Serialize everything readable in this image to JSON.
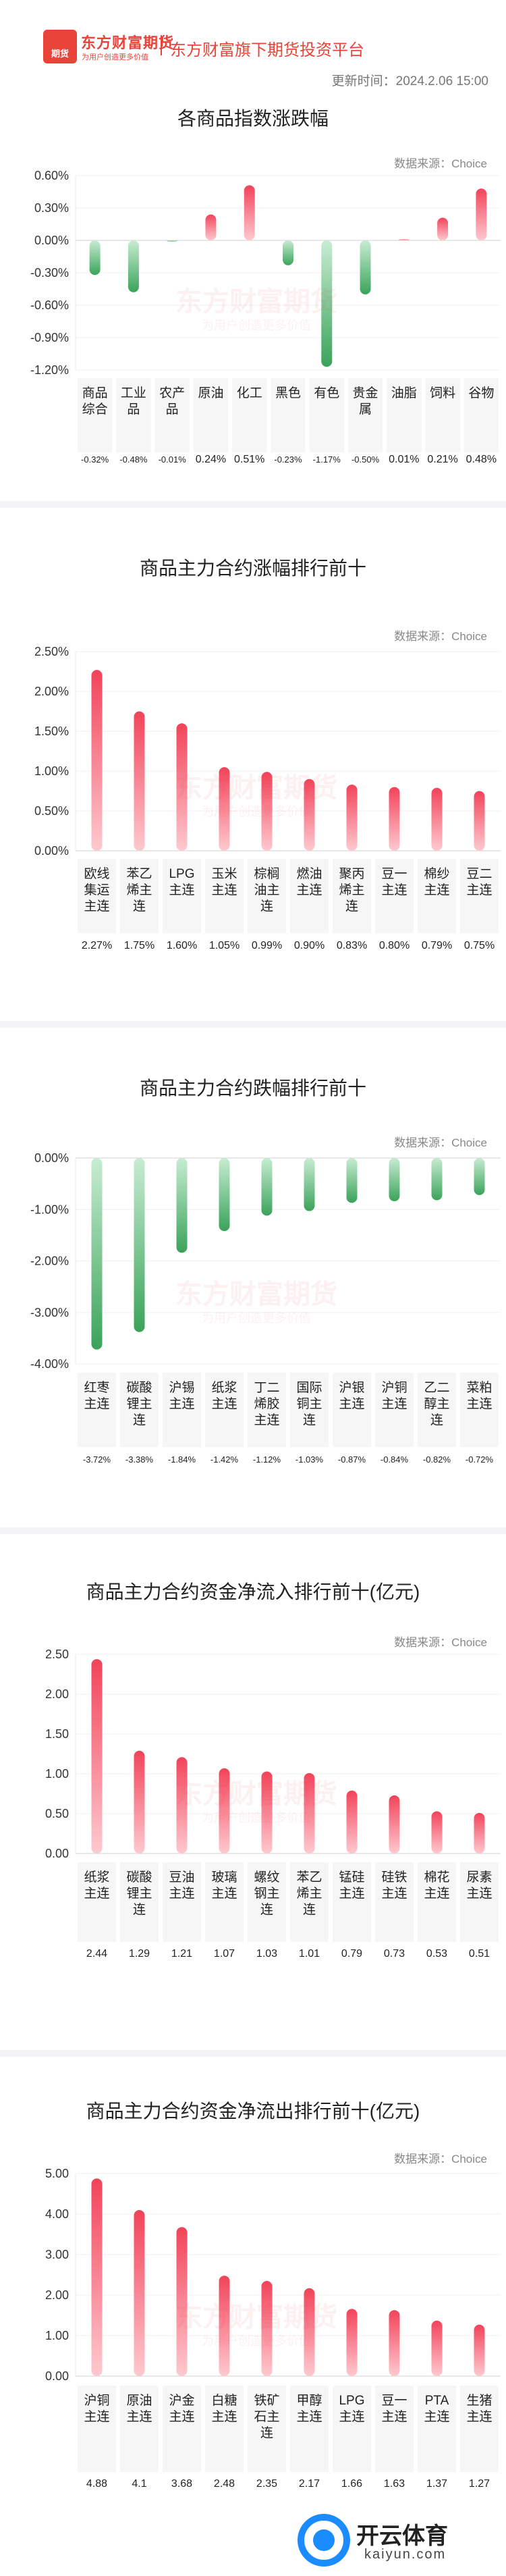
{
  "header": {
    "logo_badge": "期货",
    "logo_name": "东方财富期货",
    "logo_slogan": "为用户创造更多价值",
    "title": "东方财富旗下期货投资平台",
    "update_time": "更新时间：2024.2.06 15:00"
  },
  "watermark": {
    "name": "东方财富期货",
    "slogan": "为用户创造更多价值"
  },
  "source_label": "数据来源：Choice",
  "colors": {
    "up": "#f2435a",
    "down": "#3aa35a",
    "brand": "#e9433a"
  },
  "corner_logo": {
    "name": "开云体育",
    "url": "kaiyun.com"
  },
  "chart_data": [
    {
      "id": "chart1",
      "type": "bar",
      "title": "各商品指数涨跌幅",
      "ylim": [
        -1.2,
        0.6
      ],
      "yticks": [
        "0.60%",
        "0.30%",
        "0.00%",
        "-0.30%",
        "-0.60%",
        "-0.90%",
        "-1.20%"
      ],
      "ytick_values": [
        0.6,
        0.3,
        0,
        -0.3,
        -0.6,
        -0.9,
        -1.2
      ],
      "categories": [
        [
          "商品",
          "综合"
        ],
        [
          "工业",
          "品"
        ],
        [
          "农产",
          "品"
        ],
        [
          "原油"
        ],
        [
          "化工"
        ],
        [
          "黑色"
        ],
        [
          "有色"
        ],
        [
          "贵金",
          "属"
        ],
        [
          "油脂"
        ],
        [
          "饲料"
        ],
        [
          "谷物"
        ]
      ],
      "values": [
        -0.32,
        -0.48,
        -0.01,
        0.24,
        0.51,
        -0.23,
        -1.17,
        -0.5,
        0.01,
        0.21,
        0.48
      ],
      "value_labels": [
        "-0.32%",
        "-0.48%",
        "-0.01%",
        "0.24%",
        "0.51%",
        "-0.23%",
        "-1.17%",
        "-0.50%",
        "0.01%",
        "0.21%",
        "0.48%"
      ]
    },
    {
      "id": "chart2",
      "type": "bar",
      "title": "商品主力合约涨幅排行前十",
      "ylim": [
        0,
        2.5
      ],
      "yticks": [
        "2.50%",
        "2.00%",
        "1.50%",
        "1.00%",
        "0.50%",
        "0.00%"
      ],
      "ytick_values": [
        2.5,
        2.0,
        1.5,
        1.0,
        0.5,
        0
      ],
      "categories": [
        [
          "欧线",
          "集运",
          "主连"
        ],
        [
          "苯乙",
          "烯主",
          "连"
        ],
        [
          "LPG",
          "主连"
        ],
        [
          "玉米",
          "主连"
        ],
        [
          "棕榈",
          "油主",
          "连"
        ],
        [
          "燃油",
          "主连"
        ],
        [
          "聚丙",
          "烯主",
          "连"
        ],
        [
          "豆一",
          "主连"
        ],
        [
          "棉纱",
          "主连"
        ],
        [
          "豆二",
          "主连"
        ]
      ],
      "values": [
        2.27,
        1.75,
        1.6,
        1.05,
        0.99,
        0.9,
        0.83,
        0.8,
        0.79,
        0.75
      ],
      "value_labels": [
        "2.27%",
        "1.75%",
        "1.60%",
        "1.05%",
        "0.99%",
        "0.90%",
        "0.83%",
        "0.80%",
        "0.79%",
        "0.75%"
      ]
    },
    {
      "id": "chart3",
      "type": "bar",
      "title": "商品主力合约跌幅排行前十",
      "ylim": [
        -4.0,
        0
      ],
      "yticks": [
        "0.00%",
        "-1.00%",
        "-2.00%",
        "-3.00%",
        "-4.00%"
      ],
      "ytick_values": [
        0,
        -1,
        -2,
        -3,
        -4
      ],
      "categories": [
        [
          "红枣",
          "主连"
        ],
        [
          "碳酸",
          "锂主",
          "连"
        ],
        [
          "沪锡",
          "主连"
        ],
        [
          "纸浆",
          "主连"
        ],
        [
          "丁二",
          "烯胶",
          "主连"
        ],
        [
          "国际",
          "铜主",
          "连"
        ],
        [
          "沪银",
          "主连"
        ],
        [
          "沪铜",
          "主连"
        ],
        [
          "乙二",
          "醇主",
          "连"
        ],
        [
          "菜粕",
          "主连"
        ]
      ],
      "values": [
        -3.72,
        -3.38,
        -1.84,
        -1.42,
        -1.12,
        -1.03,
        -0.87,
        -0.84,
        -0.82,
        -0.72
      ],
      "value_labels": [
        "-3.72%",
        "-3.38%",
        "-1.84%",
        "-1.42%",
        "-1.12%",
        "-1.03%",
        "-0.87%",
        "-0.84%",
        "-0.82%",
        "-0.72%"
      ]
    },
    {
      "id": "chart4",
      "type": "bar",
      "title": "商品主力合约资金净流入排行前十(亿元)",
      "ylim": [
        0,
        2.5
      ],
      "yticks": [
        "2.50",
        "2.00",
        "1.50",
        "1.00",
        "0.50",
        "0.00"
      ],
      "ytick_values": [
        2.5,
        2.0,
        1.5,
        1.0,
        0.5,
        0
      ],
      "categories": [
        [
          "纸浆",
          "主连"
        ],
        [
          "碳酸",
          "锂主",
          "连"
        ],
        [
          "豆油",
          "主连"
        ],
        [
          "玻璃",
          "主连"
        ],
        [
          "螺纹",
          "钢主",
          "连"
        ],
        [
          "苯乙",
          "烯主",
          "连"
        ],
        [
          "锰硅",
          "主连"
        ],
        [
          "硅铁",
          "主连"
        ],
        [
          "棉花",
          "主连"
        ],
        [
          "尿素",
          "主连"
        ]
      ],
      "values": [
        2.44,
        1.29,
        1.21,
        1.07,
        1.03,
        1.01,
        0.79,
        0.73,
        0.53,
        0.51
      ],
      "value_labels": [
        "2.44",
        "1.29",
        "1.21",
        "1.07",
        "1.03",
        "1.01",
        "0.79",
        "0.73",
        "0.53",
        "0.51"
      ]
    },
    {
      "id": "chart5",
      "type": "bar",
      "title": "商品主力合约资金净流出排行前十(亿元)",
      "ylim": [
        0,
        5.0
      ],
      "yticks": [
        "5.00",
        "4.00",
        "3.00",
        "2.00",
        "1.00",
        "0.00"
      ],
      "ytick_values": [
        5,
        4,
        3,
        2,
        1,
        0
      ],
      "categories": [
        [
          "沪铜",
          "主连"
        ],
        [
          "原油",
          "主连"
        ],
        [
          "沪金",
          "主连"
        ],
        [
          "白糖",
          "主连"
        ],
        [
          "铁矿",
          "石主",
          "连"
        ],
        [
          "甲醇",
          "主连"
        ],
        [
          "LPG",
          "主连"
        ],
        [
          "豆一",
          "主连"
        ],
        [
          "PTA",
          "主连"
        ],
        [
          "生猪",
          "主连"
        ]
      ],
      "values": [
        4.88,
        4.1,
        3.68,
        2.48,
        2.35,
        2.17,
        1.66,
        1.63,
        1.37,
        1.27
      ],
      "value_labels": [
        "4.88",
        "4.1",
        "3.68",
        "2.48",
        "2.35",
        "2.17",
        "1.66",
        "1.63",
        "1.37",
        "1.27"
      ]
    }
  ]
}
